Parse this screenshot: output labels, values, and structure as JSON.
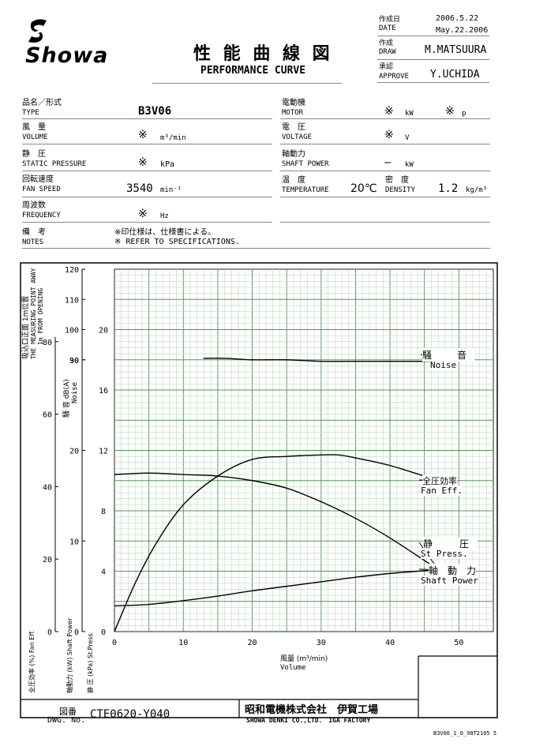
{
  "header": {
    "company_logo_text": "Showa",
    "title_jp": "性 能 曲 線 図",
    "title_en": "PERFORMANCE CURVE",
    "date_label_jp": "作成日",
    "date_label_en": "DATE",
    "date_jp": "2006.5.22",
    "date_en": "May.22.2006",
    "draw_label_jp": "作成",
    "draw_label_en": "DRAW",
    "draw_value": "M.MATSUURA",
    "approve_label_jp": "承認",
    "approve_label_en": "APPROVE",
    "approve_value": "Y.UCHIDA"
  },
  "specs": {
    "type_jp": "品名／形式",
    "type_en": "TYPE",
    "type_value": "B3V06",
    "volume_jp": "風　量",
    "volume_en": "VOLUME",
    "volume_value": "※",
    "volume_unit": "m³/min",
    "pressure_jp": "静　圧",
    "pressure_en": "STATIC PRESSURE",
    "pressure_value": "※",
    "pressure_unit": "kPa",
    "speed_jp": "回転速度",
    "speed_en": "FAN SPEED",
    "speed_value": "3540",
    "speed_unit": "min⁻¹",
    "freq_jp": "周波数",
    "freq_en": "FREQUENCY",
    "freq_value": "※",
    "freq_unit": "Hz",
    "notes_jp": "備　考",
    "notes_en": "NOTES",
    "notes_line1": "※印仕様は、仕様書による。",
    "notes_line2": "※ REFER TO SPECIFICATIONS.",
    "motor_jp": "電動機",
    "motor_en": "MOTOR",
    "motor_value": "※",
    "motor_unit": "kW",
    "motor_p_value": "※",
    "motor_p_unit": "p",
    "voltage_jp": "電　圧",
    "voltage_en": "VOLTAGE",
    "voltage_value": "※",
    "voltage_unit": "V",
    "shaft_jp": "軸動力",
    "shaft_en": "SHAFT POWER",
    "shaft_value": "—",
    "shaft_unit": "kW",
    "temp_jp": "温　度",
    "temp_en": "TEMPERATURE",
    "temp_value": "20℃",
    "density_jp": "密　度",
    "density_en": "DENSITY",
    "density_value": "1.2",
    "density_unit": "kg/m³"
  },
  "chart_data": {
    "type": "line",
    "xlabel_jp": "風量 (m³/min)",
    "xlabel_en": "Volume",
    "xlim": [
      0,
      55
    ],
    "x_ticks": [
      "0",
      "10",
      "20",
      "30",
      "40",
      "50"
    ],
    "axes": [
      {
        "name": "noise",
        "label_jp": "騒 音 dB(A)",
        "label_en": "Noise",
        "range": [
          0,
          120
        ],
        "ticks": [
          "120",
          "110",
          "100",
          "90"
        ]
      },
      {
        "name": "measure_note",
        "label_jp": "吸込口正面 1m位置",
        "label_en1": "THE MEASURING POINT AWAY",
        "label_en2": "1m FROM OPENING"
      },
      {
        "name": "fan_eff",
        "label": "全圧効率 (%) Fan Eff.",
        "range": [
          0,
          100
        ],
        "ticks": [
          "80",
          "60",
          "40",
          "20",
          "0"
        ]
      },
      {
        "name": "shaft_power",
        "label": "軸動力 (kW) Shaft Power",
        "range": [
          0,
          40
        ],
        "ticks": [
          "30",
          "20",
          "10",
          "0"
        ]
      },
      {
        "name": "st_press",
        "label": "静 圧 (kPa) St.Press.",
        "range": [
          0,
          24
        ],
        "ticks": [
          "20",
          "16",
          "12",
          "8",
          "4",
          "0"
        ]
      }
    ],
    "series": [
      {
        "name_jp": "騒　音",
        "name_en": "Noise",
        "axis": "st_press",
        "x": [
          12.9,
          16,
          20,
          25,
          30,
          35,
          40,
          47
        ],
        "y": [
          18.1,
          18.1,
          18.0,
          18.0,
          17.9,
          17.9,
          17.9,
          17.9
        ]
      },
      {
        "name_jp": "全圧効率",
        "name_en": "Fan Eff.",
        "axis": "st_press",
        "x": [
          0,
          3,
          6,
          10,
          15,
          20,
          25,
          30,
          32.5,
          35,
          40,
          47
        ],
        "y": [
          0,
          3.2,
          5.8,
          8.4,
          10.3,
          11.4,
          11.6,
          11.7,
          11.7,
          11.5,
          11.0,
          10.0
        ]
      },
      {
        "name_jp": "静　圧",
        "name_en": "St Press.",
        "axis": "st_press",
        "x": [
          0,
          5,
          10,
          15,
          20,
          25,
          30,
          35,
          40,
          47
        ],
        "y": [
          10.4,
          10.5,
          10.4,
          10.3,
          10.0,
          9.5,
          8.6,
          7.5,
          6.2,
          4.1
        ]
      },
      {
        "name_jp": "軸　動　力",
        "name_en": "Shaft Power",
        "axis": "st_press",
        "x": [
          0,
          5,
          10,
          15,
          20,
          25,
          30,
          35,
          40,
          47
        ],
        "y": [
          1.7,
          1.8,
          2.05,
          2.35,
          2.7,
          3.0,
          3.3,
          3.6,
          3.85,
          4.1
        ]
      }
    ],
    "grid": true
  },
  "footer": {
    "dwg_label_jp": "図番",
    "dwg_label_en": "DWG. No.",
    "dwg_number": "CTE0620-Y040",
    "company_jp": "昭和電機株式会社　伊賀工場",
    "company_en": "SHOWA DENKI CO.,LTD.　IGA FACTORY",
    "file_code": "B3V06_1_0_98T2105 5"
  }
}
